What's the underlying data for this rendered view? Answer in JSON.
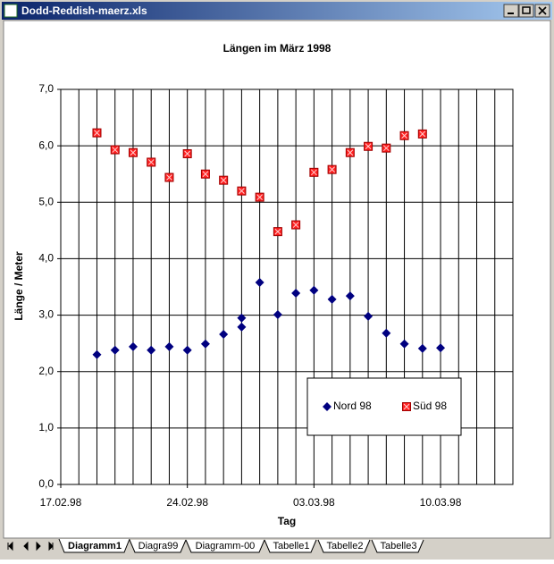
{
  "window": {
    "title": "Dodd-Reddish-maerz.xls"
  },
  "sheet_tabs": [
    "Diagramm1",
    "Diagra99",
    "Diagramm-00",
    "Tabelle1",
    "Tabelle2",
    "Tabelle3"
  ],
  "chart_data": {
    "type": "scatter",
    "title": "Längen im März 1998",
    "x_label": "Tag",
    "y_label": "Länge / Meter",
    "xlim": [
      "17.02.98",
      "14.03.98"
    ],
    "xticks": [
      "17.02.98",
      "24.02.98",
      "03.03.98",
      "10.03.98"
    ],
    "x_grid_step_days": 1,
    "ylim": [
      0,
      7
    ],
    "yticks": [
      {
        "value": 0,
        "label": "0,0"
      },
      {
        "value": 1,
        "label": "1,0"
      },
      {
        "value": 2,
        "label": "2,0"
      },
      {
        "value": 3,
        "label": "3,0"
      },
      {
        "value": 4,
        "label": "4,0"
      },
      {
        "value": 5,
        "label": "5,0"
      },
      {
        "value": 6,
        "label": "6,0"
      },
      {
        "value": 7,
        "label": "7,0"
      }
    ],
    "grid": true,
    "legend": "lower-right",
    "series": [
      {
        "name": "Nord 98",
        "color": "#000080",
        "marker": "diamond",
        "x": [
          "19.02.98",
          "20.02.98",
          "21.02.98",
          "22.02.98",
          "23.02.98",
          "24.02.98",
          "25.02.98",
          "26.02.98",
          "27.02.98",
          "27.02.98",
          "28.02.98",
          "01.03.98",
          "02.03.98",
          "03.03.98",
          "04.03.98",
          "05.03.98",
          "06.03.98",
          "07.03.98",
          "08.03.98",
          "09.03.98",
          "10.03.98"
        ],
        "values": [
          2.3,
          2.38,
          2.44,
          2.38,
          2.44,
          2.38,
          2.49,
          2.66,
          2.95,
          2.79,
          3.58,
          3.01,
          3.39,
          3.44,
          3.28,
          3.34,
          2.98,
          2.68,
          2.49,
          2.41,
          2.42
        ]
      },
      {
        "name": "Süd 98",
        "color": "#ff2020",
        "marker": "square",
        "x": [
          "19.02.98",
          "20.02.98",
          "21.02.98",
          "22.02.98",
          "23.02.98",
          "24.02.98",
          "25.02.98",
          "26.02.98",
          "27.02.98",
          "28.02.98",
          "01.03.98",
          "02.03.98",
          "03.03.98",
          "04.03.98",
          "05.03.98",
          "06.03.98",
          "07.03.98",
          "08.03.98",
          "09.03.98"
        ],
        "values": [
          6.23,
          5.93,
          5.88,
          5.71,
          5.44,
          5.86,
          5.5,
          5.39,
          5.2,
          5.09,
          4.48,
          4.6,
          5.53,
          5.58,
          5.88,
          5.99,
          5.96,
          6.18,
          6.21
        ]
      }
    ]
  }
}
